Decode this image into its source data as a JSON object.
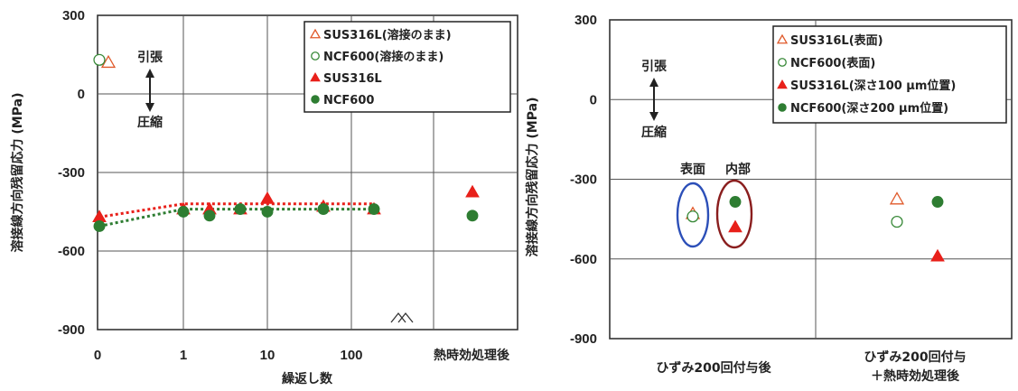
{
  "chart_data": [
    {
      "type": "scatter",
      "ylabel": "溶接線方向残留応力 (MPa)",
      "xlabel": "繰返し数",
      "ylim": [
        -900,
        300
      ],
      "yticks": [
        "300",
        "0",
        "-300",
        "-600",
        "-900"
      ],
      "xticks": [
        "0",
        "1",
        "10",
        "100"
      ],
      "extra_category": "熱時効処理後",
      "annotations": {
        "tension": "引張",
        "compression": "圧縮"
      },
      "grid": true,
      "legend_position": "top-right",
      "legend": [
        "SUS316L(溶接のまま)",
        "NCF600(溶接のまま)",
        "SUS316L",
        "NCF600"
      ],
      "series": [
        {
          "name": "SUS316L(溶接のまま)",
          "marker": "triangle-open",
          "color": "#e05a2b",
          "points": [
            {
              "x": "0",
              "y": 120
            }
          ]
        },
        {
          "name": "NCF600(溶接のまま)",
          "marker": "circle-open",
          "color": "#3a8a3a",
          "points": [
            {
              "x": "0",
              "y": 130
            }
          ]
        },
        {
          "name": "SUS316L",
          "marker": "triangle-filled",
          "color": "#e8201a",
          "points": [
            {
              "x": "0",
              "y": -470
            },
            {
              "x": "1",
              "y": -440
            },
            {
              "x": "2",
              "y": -440
            },
            {
              "x": "5",
              "y": -440
            },
            {
              "x": "10",
              "y": -400
            },
            {
              "x": "50",
              "y": -430
            },
            {
              "x": "200",
              "y": -440
            },
            {
              "x": "熱時効処理後",
              "y": -375
            }
          ]
        },
        {
          "name": "NCF600",
          "marker": "circle-filled",
          "color": "#2e7d32",
          "points": [
            {
              "x": "0",
              "y": -505
            },
            {
              "x": "1",
              "y": -450
            },
            {
              "x": "2",
              "y": -465
            },
            {
              "x": "5",
              "y": -440
            },
            {
              "x": "10",
              "y": -450
            },
            {
              "x": "50",
              "y": -440
            },
            {
              "x": "200",
              "y": -440
            },
            {
              "x": "熱時効処理後",
              "y": -465
            }
          ]
        }
      ]
    },
    {
      "type": "scatter",
      "ylabel": "溶接線方向残留応力 (MPa)",
      "ylim": [
        -900,
        300
      ],
      "yticks": [
        "300",
        "0",
        "-300",
        "-600",
        "-900"
      ],
      "categories": [
        "ひずみ200回付与後",
        "ひずみ200回付与\n＋熱時効処理後"
      ],
      "annotations": {
        "tension": "引張",
        "compression": "圧縮",
        "surface": "表面",
        "interior": "内部"
      },
      "grid": true,
      "legend_position": "top-right",
      "legend": [
        "SUS316L(表面)",
        "NCF600(表面)",
        "SUS316L(深さ100 μm位置)",
        "NCF600(深さ200 μm位置)"
      ],
      "series": [
        {
          "name": "SUS316L(表面)",
          "marker": "triangle-open",
          "color": "#e05a2b",
          "points": [
            {
              "x": "ひずみ200回付与後",
              "y": -430
            },
            {
              "x": "ひずみ200回付与\n＋熱時効処理後",
              "y": -375
            }
          ]
        },
        {
          "name": "NCF600(表面)",
          "marker": "circle-open",
          "color": "#3a8a3a",
          "points": [
            {
              "x": "ひずみ200回付与後",
              "y": -440
            },
            {
              "x": "ひずみ200回付与\n＋熱時効処理後",
              "y": -460
            }
          ]
        },
        {
          "name": "SUS316L(深さ100 μm位置)",
          "marker": "triangle-filled",
          "color": "#e8201a",
          "points": [
            {
              "x": "ひずみ200回付与後",
              "y": -480
            },
            {
              "x": "ひずみ200回付与\n＋熱時効処理後",
              "y": -590
            }
          ]
        },
        {
          "name": "NCF600(深さ200 μm位置)",
          "marker": "circle-filled",
          "color": "#2e7d32",
          "points": [
            {
              "x": "ひずみ200回付与後",
              "y": -385
            },
            {
              "x": "ひずみ200回付与\n＋熱時効処理後",
              "y": -385
            }
          ]
        }
      ]
    }
  ],
  "colors": {
    "sus": "#e8201a",
    "ncf": "#2e7d32",
    "surface_ellipse": "#2c4fb8",
    "interior_ellipse": "#8a1e1e"
  }
}
